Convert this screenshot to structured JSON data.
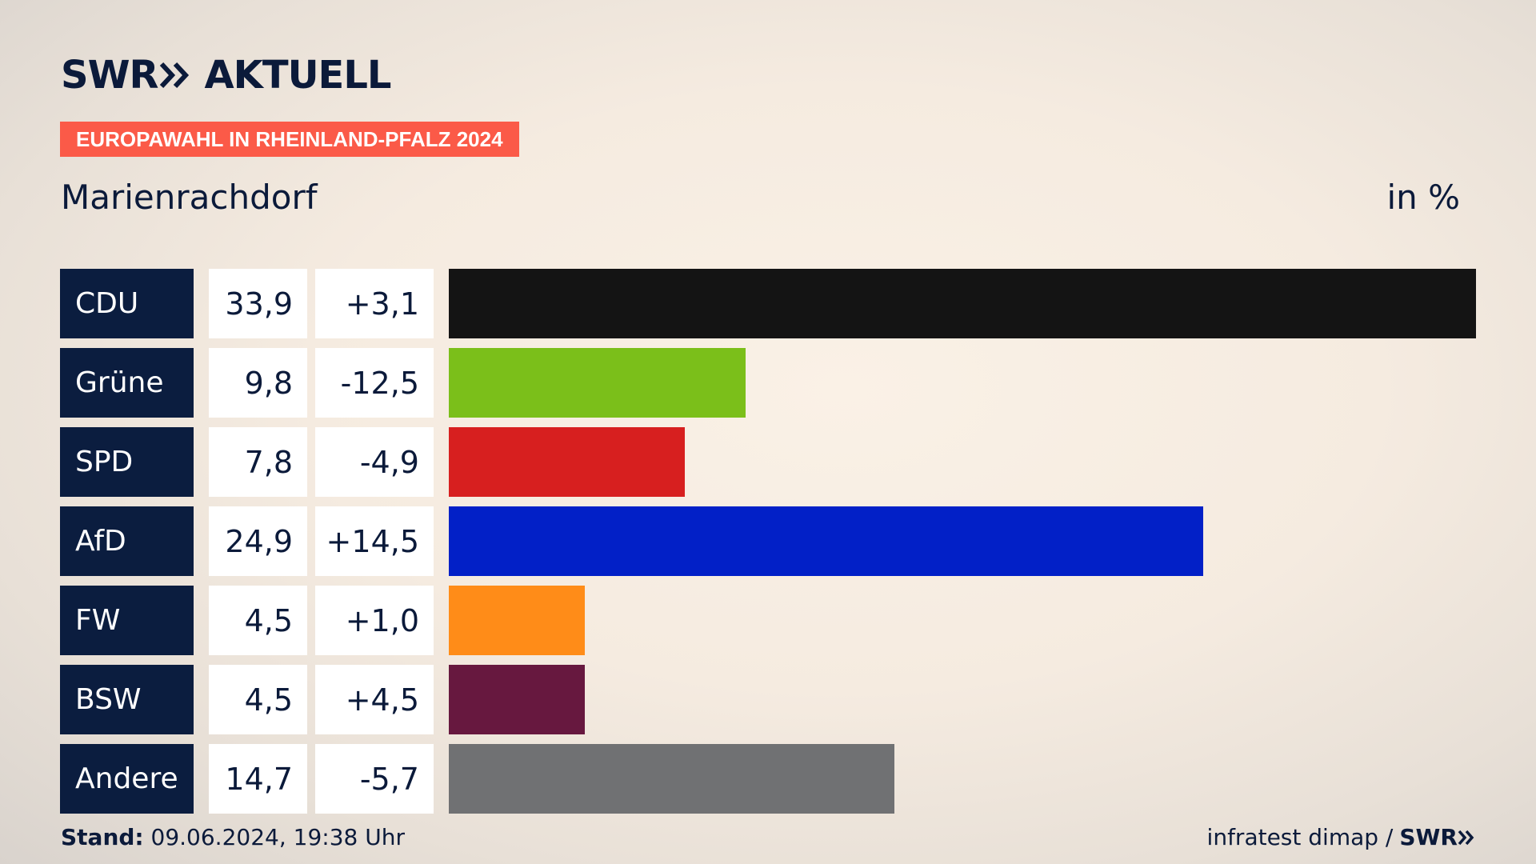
{
  "header": {
    "logo_primary": "SWR",
    "logo_secondary": "AKTUELL",
    "badge": "EUROPAWAHL IN RHEINLAND-PFALZ 2024",
    "subtitle": "Marienrachdorf",
    "unit": "in %"
  },
  "chart_data": {
    "type": "bar",
    "orientation": "horizontal",
    "title": "",
    "xlabel": "",
    "ylabel": "",
    "categories": [
      "CDU",
      "Grüne",
      "SPD",
      "AfD",
      "FW",
      "BSW",
      "Andere"
    ],
    "values": [
      33.9,
      9.8,
      7.8,
      24.9,
      4.5,
      4.5,
      14.7
    ],
    "value_labels": [
      "33,9",
      "9,8",
      "7,8",
      "24,9",
      "4,5",
      "4,5",
      "14,7"
    ],
    "diff_labels": [
      "+3,1",
      "-12,5",
      "-4,9",
      "+14,5",
      "+1,0",
      "+4,5",
      "-5,7"
    ],
    "colors": [
      "#141414",
      "#7bbf1a",
      "#d71f1f",
      "#0220c7",
      "#ff8c18",
      "#67183f",
      "#707173"
    ],
    "xlim": [
      0,
      33.9
    ],
    "grid": false,
    "legend": "none"
  },
  "footer": {
    "stand_label": "Stand:",
    "stand_value": " 09.06.2024, 19:38 Uhr",
    "source": "infratest dimap /",
    "source_logo": "SWR"
  }
}
